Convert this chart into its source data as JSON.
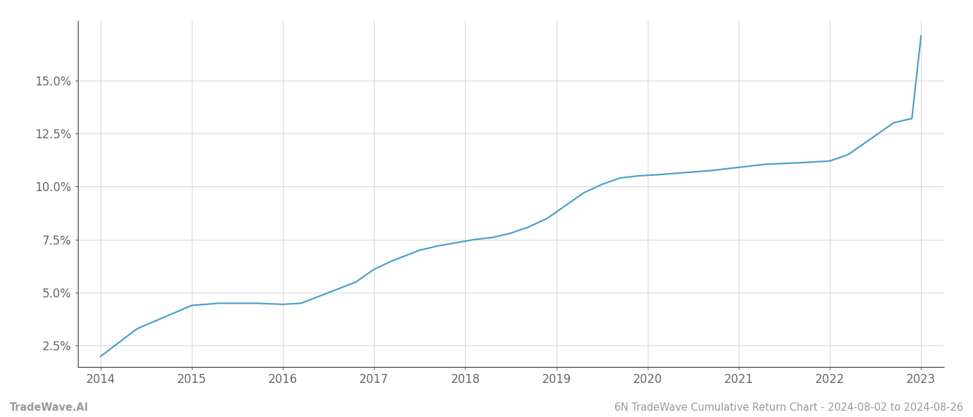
{
  "x_values": [
    2014.0,
    2014.4,
    2015.0,
    2015.3,
    2015.7,
    2016.0,
    2016.2,
    2016.5,
    2016.8,
    2017.0,
    2017.2,
    2017.5,
    2017.7,
    2017.9,
    2018.1,
    2018.3,
    2018.5,
    2018.7,
    2018.9,
    2019.1,
    2019.3,
    2019.5,
    2019.7,
    2019.9,
    2020.1,
    2020.4,
    2020.7,
    2021.0,
    2021.3,
    2021.6,
    2021.8,
    2022.0,
    2022.2,
    2022.5,
    2022.7,
    2022.9,
    2023.0
  ],
  "y_values": [
    2.0,
    3.3,
    4.4,
    4.5,
    4.5,
    4.45,
    4.5,
    5.0,
    5.5,
    6.1,
    6.5,
    7.0,
    7.2,
    7.35,
    7.5,
    7.6,
    7.8,
    8.1,
    8.5,
    9.1,
    9.7,
    10.1,
    10.4,
    10.5,
    10.55,
    10.65,
    10.75,
    10.9,
    11.05,
    11.1,
    11.15,
    11.2,
    11.5,
    12.4,
    13.0,
    13.2,
    17.1
  ],
  "line_color": "#4a9fc8",
  "line_width": 1.6,
  "yticks": [
    2.5,
    5.0,
    7.5,
    10.0,
    12.5,
    15.0
  ],
  "ytick_labels": [
    "2.5%",
    "5.0%",
    "7.5%",
    "10.0%",
    "12.5%",
    "15.0%"
  ],
  "xticks": [
    2014,
    2015,
    2016,
    2017,
    2018,
    2019,
    2020,
    2021,
    2022,
    2023
  ],
  "xlim": [
    2013.75,
    2023.25
  ],
  "ylim": [
    1.5,
    17.8
  ],
  "grid_color": "#d0d0d0",
  "grid_alpha": 0.8,
  "background_color": "#ffffff",
  "footer_left": "TradeWave.AI",
  "footer_right": "6N TradeWave Cumulative Return Chart - 2024-08-02 to 2024-08-26",
  "footer_fontsize": 10.5,
  "footer_color": "#999999",
  "left_spine_color": "#333333",
  "bottom_spine_color": "#333333",
  "tick_fontsize": 12,
  "tick_color": "#666666"
}
